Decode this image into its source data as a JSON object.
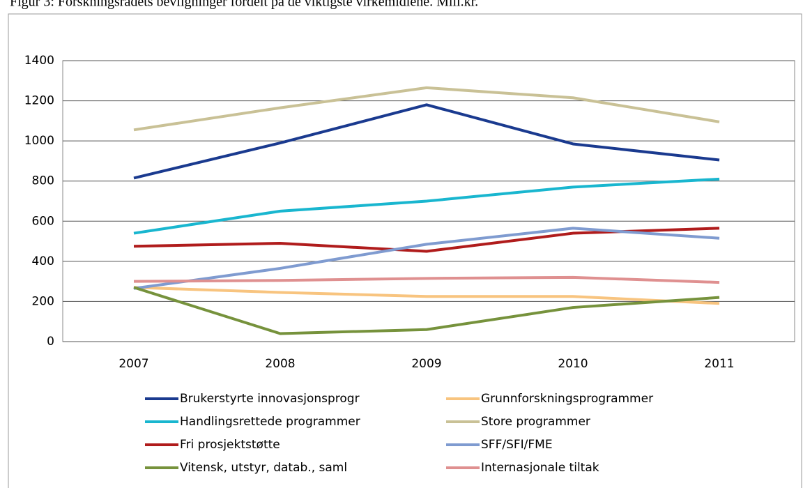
{
  "chart_data": {
    "type": "line",
    "title": "Figur 3: Forskningsrådets bevilgninger fordelt på de viktigste virkemidlene. Mill.kr.",
    "categories": [
      "2007",
      "2008",
      "2009",
      "2010",
      "2011"
    ],
    "series": [
      {
        "name": "Brukerstyrte innovasjonsprogr",
        "color": "#1a3a8f",
        "values": [
          815,
          990,
          1180,
          985,
          905
        ]
      },
      {
        "name": "Grunnforskningsprogrammer",
        "color": "#f8c47f",
        "values": [
          270,
          245,
          225,
          225,
          190
        ]
      },
      {
        "name": "Handlingsrettede programmer",
        "color": "#19b6cf",
        "values": [
          540,
          650,
          700,
          770,
          810
        ]
      },
      {
        "name": "Store programmer",
        "color": "#c9c196",
        "values": [
          1055,
          1165,
          1265,
          1215,
          1095
        ]
      },
      {
        "name": "Fri prosjektstøtte",
        "color": "#b01c1c",
        "values": [
          475,
          490,
          450,
          540,
          565
        ]
      },
      {
        "name": "SFF/SFI/FME",
        "color": "#7f9bd0",
        "values": [
          265,
          365,
          485,
          565,
          515
        ]
      },
      {
        "name": "Vitensk, utstyr, datab., saml",
        "color": "#76923c",
        "values": [
          270,
          40,
          60,
          170,
          220
        ]
      },
      {
        "name": "Internasjonale tiltak",
        "color": "#df9090",
        "values": [
          300,
          305,
          315,
          320,
          295
        ]
      }
    ],
    "ylim": [
      0,
      1400
    ],
    "yticks": [
      0,
      200,
      400,
      600,
      800,
      1000,
      1200,
      1400
    ],
    "grid": true
  }
}
